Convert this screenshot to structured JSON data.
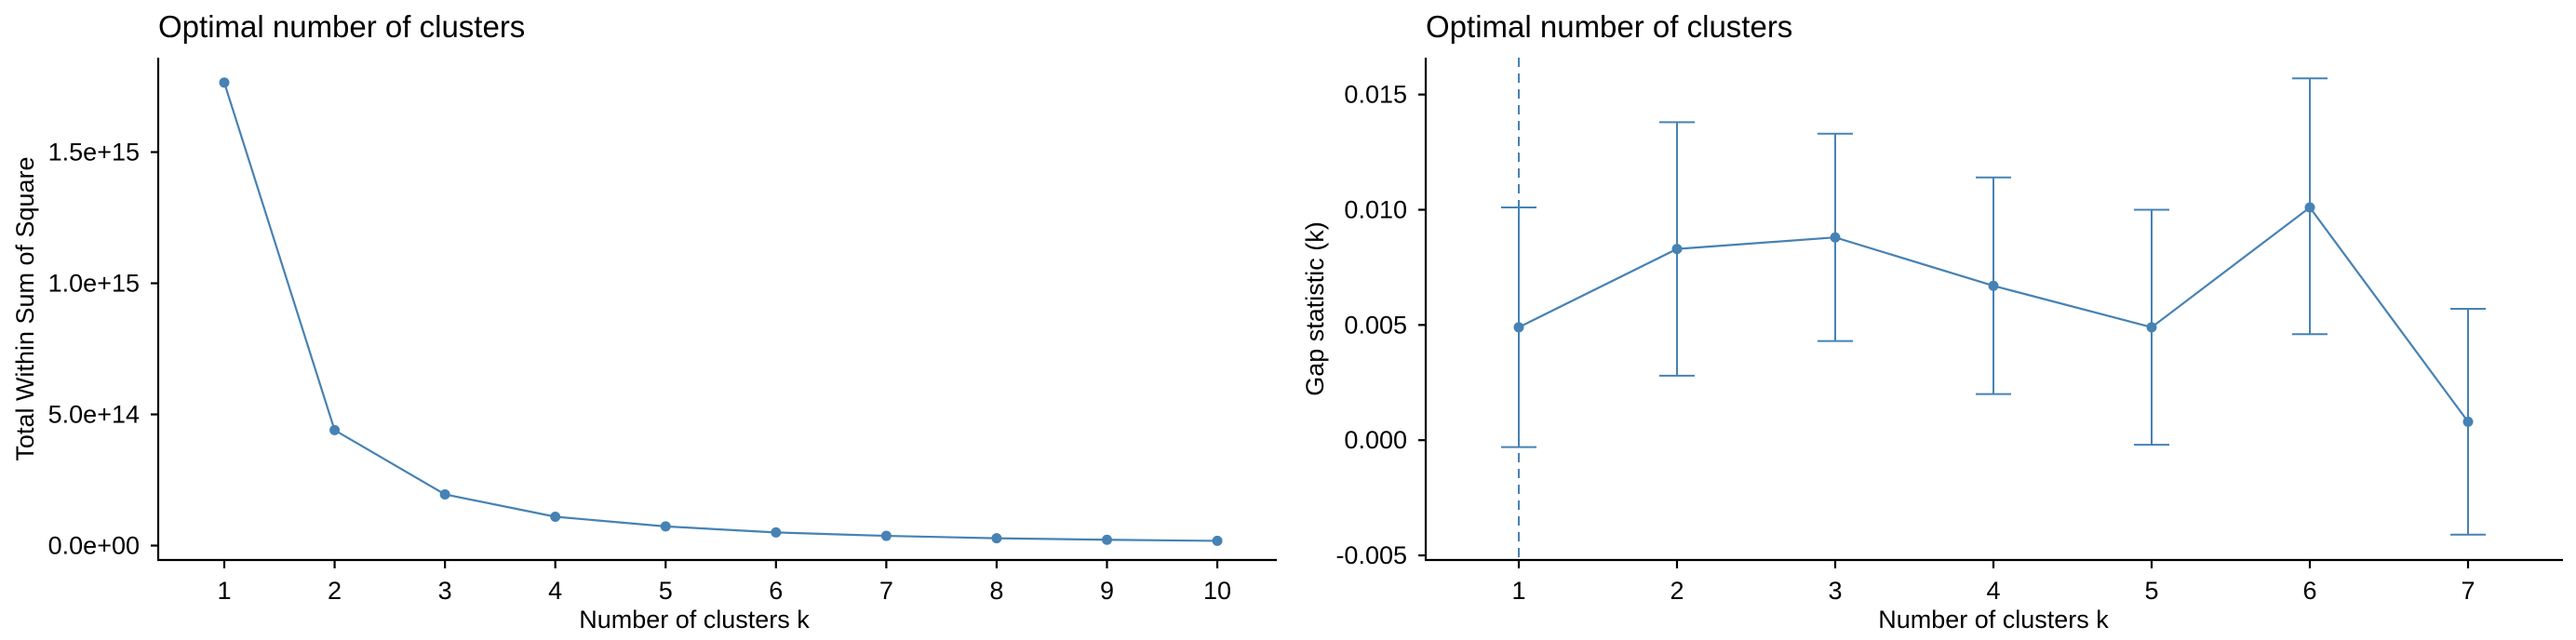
{
  "chart_data": [
    {
      "type": "line",
      "title": "Optimal number of clusters",
      "xlabel": "Number of clusters k",
      "ylabel": "Total Within Sum of Square",
      "x": [
        1,
        2,
        3,
        4,
        5,
        6,
        7,
        8,
        9,
        10
      ],
      "x_ticks": [
        "1",
        "2",
        "3",
        "4",
        "5",
        "6",
        "7",
        "8",
        "9",
        "10"
      ],
      "y_ticks": [
        {
          "value": 0,
          "label": "0.0e+00"
        },
        {
          "value": 500000000000000.0,
          "label": "5.0e+14"
        },
        {
          "value": 1000000000000000.0,
          "label": "1.0e+15"
        },
        {
          "value": 1500000000000000.0,
          "label": "1.5e+15"
        }
      ],
      "ylim": [
        -55000000000000.0,
        1860000000000000.0
      ],
      "series": [
        {
          "values": [
            1765000000000000.0,
            440000000000000.0,
            195000000000000.0,
            110000000000000.0,
            73000000000000.0,
            50000000000000.0,
            37000000000000.0,
            28000000000000.0,
            22000000000000.0,
            18000000000000.0
          ]
        }
      ],
      "color": "#4682b4",
      "grid": false
    },
    {
      "type": "line",
      "title": "Optimal number of clusters",
      "xlabel": "Number of clusters k",
      "ylabel": "Gap statistic (k)",
      "x": [
        1,
        2,
        3,
        4,
        5,
        6,
        7
      ],
      "x_ticks": [
        "1",
        "2",
        "3",
        "4",
        "5",
        "6",
        "7"
      ],
      "y_ticks": [
        {
          "value": -0.005,
          "label": "-0.005"
        },
        {
          "value": 0.0,
          "label": "0.000"
        },
        {
          "value": 0.005,
          "label": "0.005"
        },
        {
          "value": 0.01,
          "label": "0.010"
        },
        {
          "value": 0.015,
          "label": "0.015"
        }
      ],
      "ylim": [
        -0.0052,
        0.0166
      ],
      "series": [
        {
          "values": [
            0.0049,
            0.0083,
            0.0088,
            0.0067,
            0.0049,
            0.0101,
            0.0008
          ],
          "error_lower": [
            -0.0003,
            0.0028,
            0.0043,
            0.002,
            -0.0002,
            0.0046,
            -0.0041
          ],
          "error_upper": [
            0.0101,
            0.0138,
            0.0133,
            0.0114,
            0.01,
            0.0157,
            0.0057
          ]
        }
      ],
      "vline_x": 1,
      "color": "#4682b4",
      "grid": false
    }
  ]
}
